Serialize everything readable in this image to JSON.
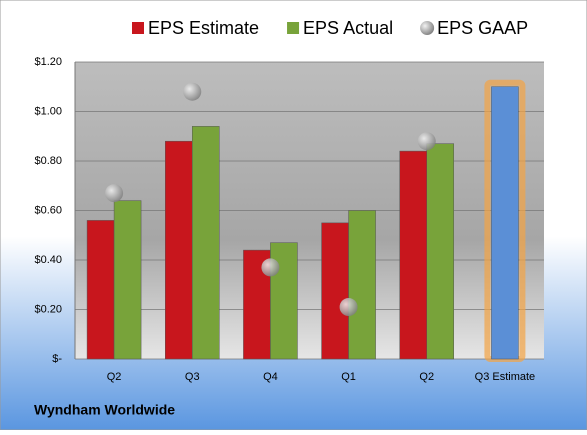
{
  "chart_data": {
    "type": "bar",
    "categories": [
      "Q2",
      "Q3",
      "Q4",
      "Q1",
      "Q2",
      "Q3 Estimate"
    ],
    "series": [
      {
        "name": "EPS Estimate",
        "type": "bar",
        "color": "#c8161d",
        "values": [
          0.56,
          0.88,
          0.44,
          0.55,
          0.84,
          1.1
        ],
        "highlight": {
          "index": 5,
          "color": "#5b8fd6",
          "glow": "#f3a444"
        }
      },
      {
        "name": "EPS Actual",
        "type": "bar",
        "color": "#78a33a",
        "values": [
          0.64,
          0.94,
          0.47,
          0.6,
          0.87,
          null
        ]
      },
      {
        "name": "EPS GAAP",
        "type": "scatter",
        "color": "#a9a9a9",
        "values": [
          0.67,
          1.08,
          0.37,
          0.21,
          0.88,
          null
        ]
      }
    ],
    "ylim": [
      0,
      1.2
    ],
    "yticks": [
      {
        "value": 0,
        "label": "$-"
      },
      {
        "value": 0.2,
        "label": "$0.20"
      },
      {
        "value": 0.4,
        "label": "$0.40"
      },
      {
        "value": 0.6,
        "label": "$0.60"
      },
      {
        "value": 0.8,
        "label": "$0.80"
      },
      {
        "value": 1.0,
        "label": "$1.00"
      },
      {
        "value": 1.2,
        "label": "$1.20"
      }
    ],
    "grid": true,
    "footer": "Wyndham Worldwide"
  }
}
